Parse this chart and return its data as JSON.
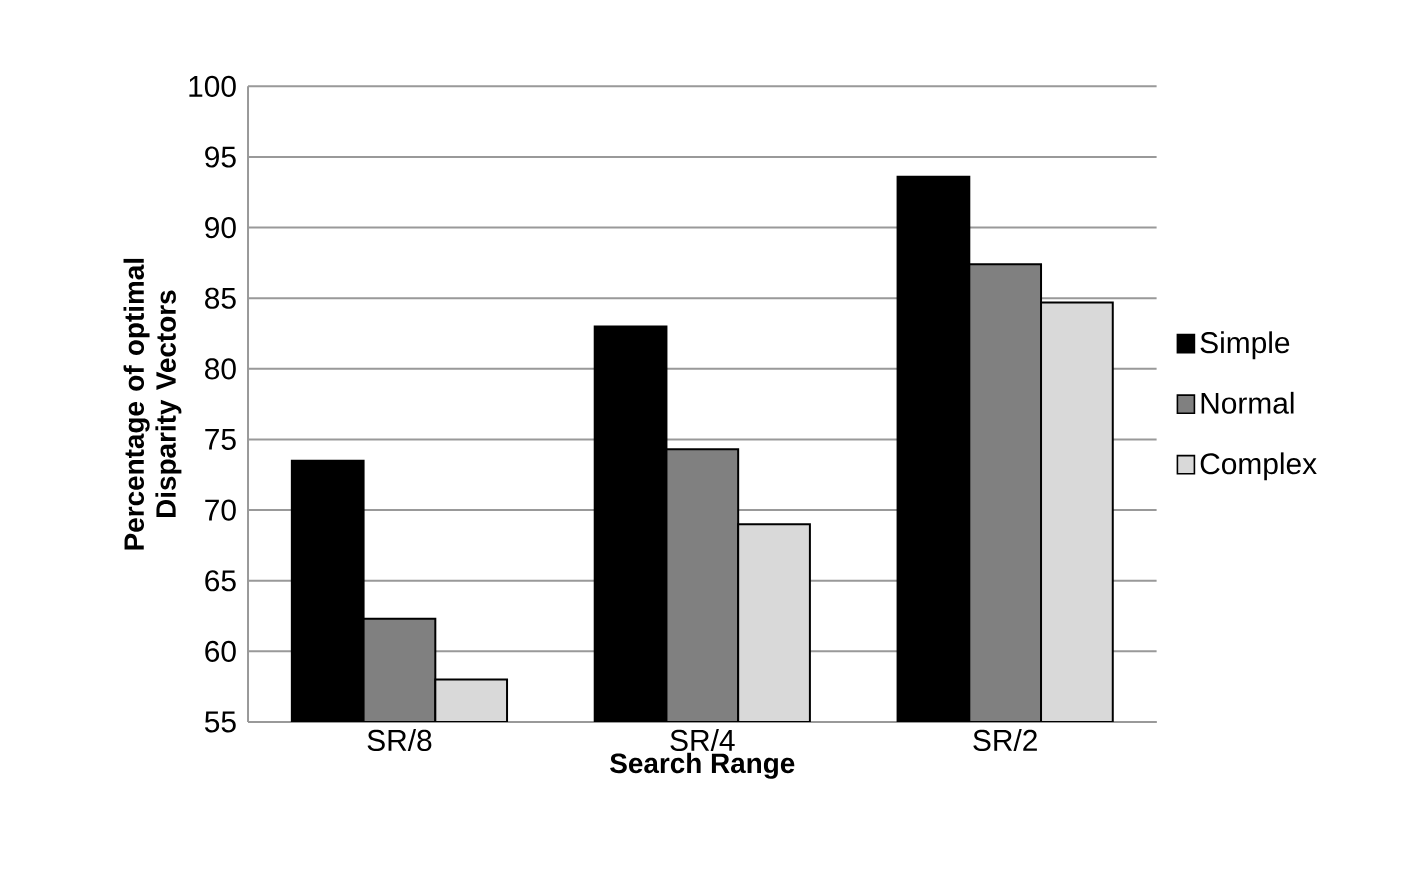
{
  "chart_data": {
    "type": "bar",
    "xlabel": "Search Range",
    "ylabel": "Percentage of optimal Disparity Vectors",
    "categories": [
      "SR/8",
      "SR/4",
      "SR/2"
    ],
    "series": [
      {
        "name": "Simple",
        "color": "#000000",
        "values": [
          73.5,
          83.0,
          93.6
        ]
      },
      {
        "name": "Normal",
        "color": "#808080",
        "values": [
          62.3,
          74.3,
          87.4
        ]
      },
      {
        "name": "Complex",
        "color": "#d9d9d9",
        "values": [
          58.0,
          69.0,
          84.7
        ]
      }
    ],
    "ylim": [
      55,
      100
    ],
    "yticks": [
      55,
      60,
      65,
      70,
      75,
      80,
      85,
      90,
      95,
      100
    ],
    "grid": "y",
    "legend": "right"
  }
}
